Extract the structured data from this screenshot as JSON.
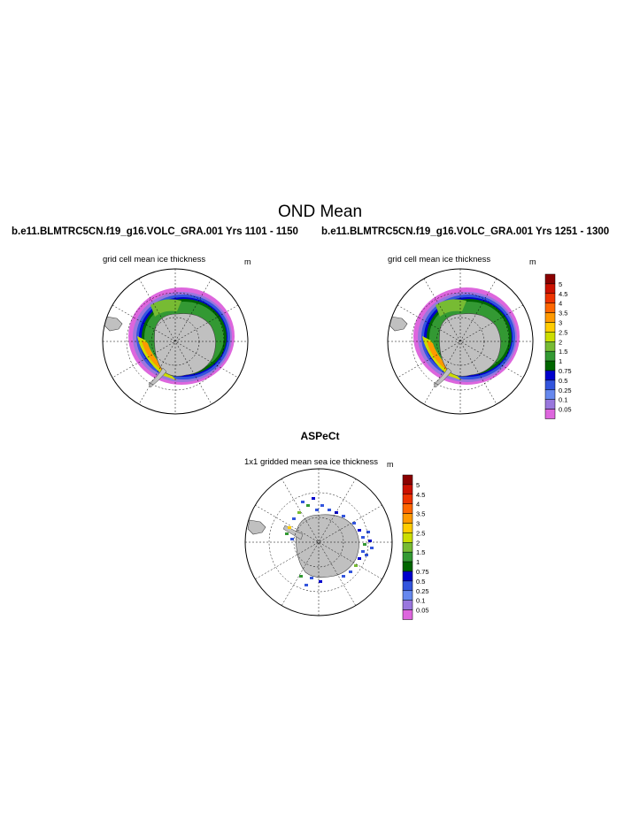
{
  "main_title": "OND Mean",
  "panels": {
    "left": {
      "case_title": "b.e11.BLMTRC5CN.f19_g16.VOLC_GRA.001  Yrs 1101 - 1150",
      "field_title": "grid cell mean ice thickness",
      "units": "m"
    },
    "right": {
      "case_title": "b.e11.BLMTRC5CN.f19_g16.VOLC_GRA.001  Yrs 1251 - 1300",
      "field_title": "grid cell mean ice thickness",
      "units": "m"
    },
    "obs": {
      "title": "ASPeCt",
      "field_title": "1x1 gridded mean sea ice thickness",
      "units": "m"
    }
  },
  "colorbar": {
    "labels": [
      "5",
      "4.5",
      "4",
      "3.5",
      "3",
      "2.5",
      "2",
      "1.5",
      "1",
      "0.75",
      "0.5",
      "0.25",
      "0.1",
      "0.05"
    ],
    "colors": [
      "#8b0000",
      "#cc1100",
      "#ee3300",
      "#ff6600",
      "#ff9900",
      "#ffcc00",
      "#ccdd00",
      "#77bb33",
      "#339933",
      "#006600",
      "#0000cc",
      "#3355dd",
      "#6688ee",
      "#9977dd",
      "#dd66dd"
    ]
  },
  "map_colors": {
    "land": "#c0c0c0",
    "ocean": "#ffffff"
  }
}
